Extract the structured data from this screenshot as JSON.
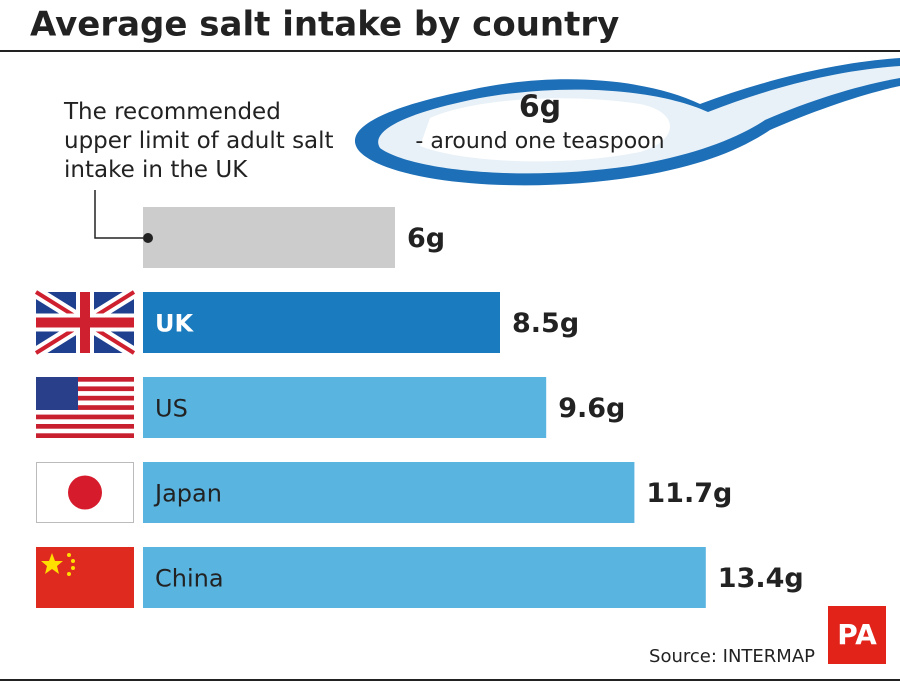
{
  "chart_data": {
    "type": "bar",
    "orientation": "horizontal",
    "title": "Average salt intake by country",
    "annotation": "The recommended upper limit of adult salt intake in the UK",
    "spoon_amount": "6g",
    "spoon_note": "- around one teaspoon",
    "categories": [
      null,
      "UK",
      "US",
      "Japan",
      "China"
    ],
    "values": [
      6,
      8.5,
      9.6,
      11.7,
      13.4
    ],
    "value_labels": [
      "6g",
      "8.5g",
      "9.6g",
      "11.7g",
      "13.4g"
    ],
    "colors": [
      "#cccccc",
      "#1a7bbf",
      "#5ab4e0",
      "#5ab4e0",
      "#5ab4e0"
    ],
    "label_colors": [
      "#222222",
      "#ffffff",
      "#222222",
      "#222222",
      "#222222"
    ],
    "source": "Source: INTERMAP",
    "logo": "PA"
  }
}
